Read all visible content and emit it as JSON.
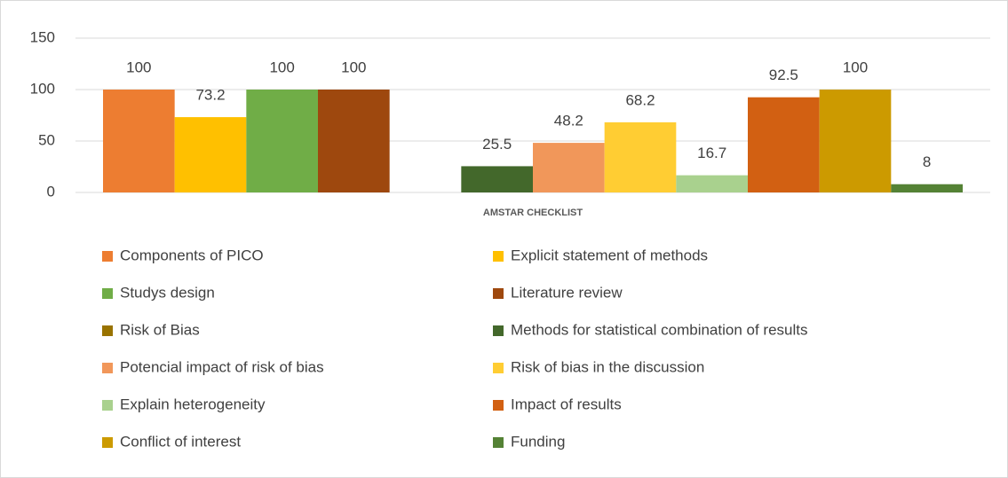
{
  "chart_data": {
    "type": "bar",
    "categories": [
      "AMSTAR CHECKLIST"
    ],
    "series": [
      {
        "name": "Components of PICO",
        "color": "#ED7D31",
        "values": [
          100
        ]
      },
      {
        "name": "Explicit statement of methods",
        "color": "#FFC000",
        "values": [
          73.2
        ]
      },
      {
        "name": "Studys design",
        "color": "#70AD47",
        "values": [
          100
        ]
      },
      {
        "name": "Literature review",
        "color": "#9E480E",
        "values": [
          100
        ]
      },
      {
        "name": "Risk of Bias",
        "color": "#997300",
        "values": [
          null
        ]
      },
      {
        "name": "Methods for statistical combination of results",
        "color": "#43682B",
        "values": [
          25.5
        ]
      },
      {
        "name": "Potencial impact of risk of bias",
        "color": "#F1975A",
        "values": [
          48.2
        ]
      },
      {
        "name": "Risk of bias in the discussion",
        "color": "#FFCD33",
        "values": [
          68.2
        ]
      },
      {
        "name": "Explain heterogeneity",
        "color": "#A9D18E",
        "values": [
          16.7
        ]
      },
      {
        "name": "Impact of results",
        "color": "#D26012",
        "values": [
          92.5
        ]
      },
      {
        "name": "Conflict of interest",
        "color": "#CC9A00",
        "values": [
          100
        ]
      },
      {
        "name": "Funding",
        "color": "#548235",
        "values": [
          8
        ]
      }
    ],
    "ylim": [
      0,
      150
    ],
    "yticks": [
      0,
      50,
      100,
      150
    ],
    "grid": true,
    "legend": "bottom"
  }
}
